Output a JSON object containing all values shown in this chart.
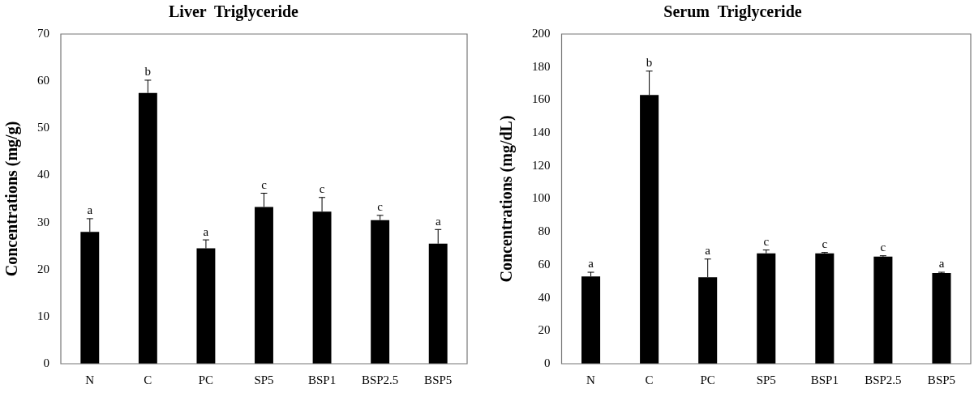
{
  "chart_data": [
    {
      "type": "bar",
      "title": "Liver  Triglyceride",
      "ylabel": "Concentrations (mg/g)",
      "categories": [
        "N",
        "C",
        "PC",
        "SP5",
        "BSP1",
        "BSP2.5",
        "BSP5"
      ],
      "series": [
        {
          "color": "#000000",
          "values": [
            28,
            57.5,
            24.5,
            33.3,
            32.3,
            30.5,
            25.5
          ],
          "errors": [
            [
              28,
              30.8
            ],
            [
              57.5,
              60.2
            ],
            [
              24.5,
              26.3
            ],
            [
              33.3,
              36.2
            ],
            [
              32.3,
              35.3
            ],
            [
              30.5,
              31.5
            ],
            [
              25.5,
              28.5
            ]
          ]
        }
      ],
      "ylim": [
        0,
        70
      ],
      "yticks": [
        0,
        10,
        20,
        30,
        40,
        50,
        60,
        70
      ],
      "grid": false,
      "legend": false,
      "annotations": [
        {
          "text": "a",
          "x": "N",
          "y": 30.8
        },
        {
          "text": "b",
          "x": "C",
          "y": 60.2
        },
        {
          "text": "a",
          "x": "PC",
          "y": 26.3
        },
        {
          "text": "c",
          "x": "SP5",
          "y": 36.2
        },
        {
          "text": "c",
          "x": "BSP1",
          "y": 35.3
        },
        {
          "text": "c",
          "x": "BSP2.5",
          "y": 31.5
        },
        {
          "text": "a",
          "x": "BSP5",
          "y": 28.5
        }
      ]
    },
    {
      "type": "bar",
      "title": "Serum  Triglyceride",
      "ylabel": "Concentrations (mg/dL)",
      "categories": [
        "N",
        "C",
        "PC",
        "SP5",
        "BSP1",
        "BSP2.5",
        "BSP5"
      ],
      "series": [
        {
          "color": "#000000",
          "values": [
            53,
            163,
            52.5,
            67,
            67,
            65,
            55
          ],
          "errors": [
            [
              53,
              55.5
            ],
            [
              163,
              177.5
            ],
            [
              52.5,
              63.5
            ],
            [
              67,
              69
            ],
            [
              67,
              67.5
            ],
            [
              65,
              65.5
            ],
            [
              55,
              55.5
            ]
          ]
        }
      ],
      "ylim": [
        0,
        200
      ],
      "yticks": [
        0,
        20,
        40,
        60,
        80,
        100,
        120,
        140,
        160,
        180,
        200
      ],
      "grid": false,
      "legend": false,
      "annotations": [
        {
          "text": "a",
          "x": "N",
          "y": 55.5
        },
        {
          "text": "b",
          "x": "C",
          "y": 177.5
        },
        {
          "text": "a",
          "x": "PC",
          "y": 63.5
        },
        {
          "text": "c",
          "x": "SP5",
          "y": 69
        },
        {
          "text": "c",
          "x": "BSP1",
          "y": 67.5
        },
        {
          "text": "c",
          "x": "BSP2.5",
          "y": 65.5
        },
        {
          "text": "a",
          "x": "BSP5",
          "y": 55.5
        }
      ]
    }
  ]
}
